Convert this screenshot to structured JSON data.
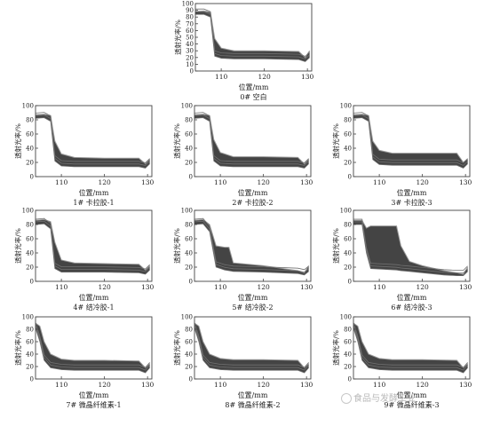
{
  "colors": {
    "band": "#2a2a2a",
    "band_light": "#9a9a9a",
    "frame": "#444444",
    "trace": "#707070"
  },
  "watermark": {
    "text": "食品与发酵工业",
    "icon": "wechat-icon"
  },
  "chart_data": [
    {
      "type": "area",
      "panel": "0",
      "label": "0# 空白",
      "xlabel": "位置/mm",
      "ylabel": "透射光率/%",
      "xlim": [
        104,
        131
      ],
      "ylim": [
        0,
        100
      ],
      "xticks": [
        110,
        120,
        130
      ],
      "yticks": [
        0,
        10,
        20,
        30,
        40,
        50,
        60,
        70,
        80,
        90,
        100
      ],
      "grid": false,
      "series": [
        {
          "x": [
            104,
            106,
            107.5,
            108.5,
            110,
            113,
            120,
            128,
            129.5,
            130.5
          ],
          "upper": [
            88,
            89,
            87,
            48,
            34,
            30,
            30,
            29,
            20,
            30
          ],
          "lower": [
            84,
            84,
            80,
            22,
            19,
            18,
            18,
            17,
            14,
            20
          ]
        }
      ]
    },
    {
      "type": "area",
      "panel": "1",
      "label": "1# 卡拉胶-1",
      "xlabel": "位置/mm",
      "ylabel": "透射光率/%",
      "xlim": [
        104,
        131
      ],
      "ylim": [
        0,
        100
      ],
      "xticks": [
        110,
        120,
        130
      ],
      "yticks": [
        0,
        20,
        40,
        60,
        80,
        100
      ],
      "grid": false,
      "series": [
        {
          "x": [
            104,
            106,
            107.5,
            108.5,
            110,
            113,
            120,
            128,
            129.5,
            130.5
          ],
          "upper": [
            87,
            88,
            86,
            50,
            32,
            27,
            26,
            26,
            18,
            25
          ],
          "lower": [
            82,
            83,
            78,
            22,
            15,
            14,
            14,
            14,
            12,
            18
          ]
        }
      ]
    },
    {
      "type": "area",
      "panel": "2",
      "label": "2# 卡拉胶-2",
      "xlabel": "位置/mm",
      "ylabel": "透射光率/%",
      "xlim": [
        104,
        131
      ],
      "ylim": [
        0,
        100
      ],
      "xticks": [
        110,
        120,
        130
      ],
      "yticks": [
        0,
        20,
        40,
        60,
        80,
        100
      ],
      "grid": false,
      "series": [
        {
          "x": [
            104,
            106,
            107.5,
            108.5,
            110,
            113,
            120,
            128,
            129.5,
            130.5
          ],
          "upper": [
            87,
            88,
            86,
            52,
            34,
            28,
            28,
            27,
            18,
            25
          ],
          "lower": [
            82,
            83,
            78,
            22,
            15,
            14,
            14,
            14,
            12,
            18
          ]
        }
      ]
    },
    {
      "type": "area",
      "panel": "3",
      "label": "3# 卡拉胶-3",
      "xlabel": "位置/mm",
      "ylabel": "透射光率/%",
      "xlim": [
        104,
        131
      ],
      "ylim": [
        0,
        100
      ],
      "xticks": [
        110,
        120,
        130
      ],
      "yticks": [
        0,
        20,
        40,
        60,
        80,
        100
      ],
      "grid": false,
      "series": [
        {
          "x": [
            104,
            106,
            107.5,
            108.5,
            110,
            113,
            120,
            128,
            129.5,
            130.5
          ],
          "upper": [
            87,
            88,
            86,
            50,
            37,
            33,
            33,
            33,
            20,
            25
          ],
          "lower": [
            82,
            83,
            78,
            24,
            17,
            16,
            16,
            16,
            12,
            18
          ]
        }
      ]
    },
    {
      "type": "area",
      "panel": "4",
      "label": "4# 结冷胶-1",
      "xlabel": "位置/mm",
      "ylabel": "透射光率/%",
      "xlim": [
        104,
        131
      ],
      "ylim": [
        0,
        100
      ],
      "xticks": [
        110,
        120,
        130
      ],
      "yticks": [
        0,
        20,
        40,
        60,
        80,
        100
      ],
      "grid": false,
      "series": [
        {
          "x": [
            104,
            106,
            107.5,
            108.5,
            110,
            113,
            120,
            128,
            129.5,
            130.5
          ],
          "upper": [
            86,
            87,
            84,
            55,
            30,
            26,
            25,
            24,
            16,
            22
          ],
          "lower": [
            80,
            81,
            74,
            18,
            13,
            13,
            13,
            12,
            10,
            16
          ]
        }
      ]
    },
    {
      "type": "area",
      "panel": "5",
      "label": "5# 结冷胶-2",
      "xlabel": "位置/mm",
      "ylabel": "透射光率/%",
      "xlim": [
        104,
        131
      ],
      "ylim": [
        0,
        100
      ],
      "xticks": [
        110,
        120,
        130
      ],
      "yticks": [
        0,
        20,
        40,
        60,
        80,
        100
      ],
      "grid": false,
      "series": [
        {
          "x": [
            104,
            106,
            107.5,
            109,
            111,
            112,
            113,
            120,
            128,
            129.5,
            130.5
          ],
          "upper": [
            86,
            87,
            80,
            50,
            48,
            48,
            26,
            22,
            15,
            12,
            22
          ],
          "lower": [
            80,
            81,
            70,
            20,
            16,
            15,
            14,
            13,
            11,
            9,
            14
          ]
        }
      ]
    },
    {
      "type": "area",
      "panel": "6",
      "label": "6# 结冷胶-3",
      "xlabel": "位置/mm",
      "ylabel": "透射光率/%",
      "xlim": [
        104,
        131
      ],
      "ylim": [
        0,
        100
      ],
      "xticks": [
        110,
        120,
        130
      ],
      "yticks": [
        0,
        20,
        40,
        60,
        80,
        100
      ],
      "grid": false,
      "series": [
        {
          "x": [
            104,
            106,
            107,
            108,
            114,
            115,
            117,
            120,
            125,
            128,
            129.5,
            130.5
          ],
          "upper": [
            86,
            86,
            75,
            78,
            78,
            50,
            28,
            22,
            15,
            12,
            10,
            20
          ],
          "lower": [
            80,
            80,
            40,
            18,
            16,
            15,
            14,
            12,
            9,
            8,
            8,
            14
          ]
        }
      ]
    },
    {
      "type": "area",
      "panel": "7",
      "label": "7# 微晶纤维素-1",
      "xlabel": "位置/mm",
      "ylabel": "透射光率/%",
      "xlim": [
        104,
        131
      ],
      "ylim": [
        0,
        100
      ],
      "xticks": [
        110,
        120,
        130
      ],
      "yticks": [
        0,
        20,
        40,
        60,
        80,
        100
      ],
      "grid": false,
      "series": [
        {
          "x": [
            104,
            105,
            106,
            107.5,
            110,
            113,
            120,
            128,
            129.5,
            130.5
          ],
          "upper": [
            90,
            85,
            60,
            40,
            32,
            30,
            30,
            29,
            18,
            25
          ],
          "lower": [
            82,
            60,
            30,
            18,
            15,
            14,
            14,
            14,
            10,
            18
          ]
        }
      ]
    },
    {
      "type": "area",
      "panel": "8",
      "label": "8# 微晶纤维素-2",
      "xlabel": "位置/mm",
      "ylabel": "透射光率/%",
      "xlim": [
        104,
        131
      ],
      "ylim": [
        0,
        100
      ],
      "xticks": [
        110,
        120,
        130
      ],
      "yticks": [
        0,
        20,
        40,
        60,
        80,
        100
      ],
      "grid": false,
      "series": [
        {
          "x": [
            104,
            105,
            106,
            107.5,
            110,
            113,
            120,
            128,
            129.5,
            130.5
          ],
          "upper": [
            90,
            85,
            60,
            40,
            33,
            31,
            31,
            30,
            18,
            25
          ],
          "lower": [
            82,
            60,
            30,
            18,
            15,
            14,
            14,
            14,
            10,
            18
          ]
        }
      ]
    },
    {
      "type": "area",
      "panel": "9",
      "label": "9# 微晶纤维素-3",
      "xlabel": "位置/mm",
      "ylabel": "透射光率/%",
      "xlim": [
        104,
        131
      ],
      "ylim": [
        0,
        100
      ],
      "xticks": [
        110,
        120,
        130
      ],
      "yticks": [
        0,
        20,
        40,
        60,
        80,
        100
      ],
      "grid": false,
      "series": [
        {
          "x": [
            104,
            105,
            106,
            107.5,
            110,
            113,
            120,
            128,
            129.5,
            130.5
          ],
          "upper": [
            90,
            85,
            60,
            40,
            33,
            31,
            31,
            30,
            18,
            25
          ],
          "lower": [
            82,
            60,
            30,
            18,
            15,
            14,
            14,
            14,
            10,
            18
          ]
        }
      ]
    }
  ]
}
